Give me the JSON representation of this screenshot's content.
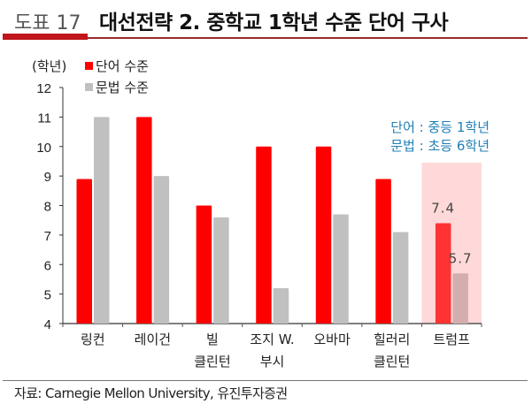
{
  "header": {
    "figure_number": "도표 17",
    "title": "대선전략 2. 중학교 1학년 수준 단어 구사"
  },
  "chart_data": {
    "type": "bar",
    "ylabel": "(학년)",
    "ylim": [
      4,
      12
    ],
    "yticks": [
      4,
      5,
      6,
      7,
      8,
      9,
      10,
      11,
      12
    ],
    "categories": [
      [
        "링컨"
      ],
      [
        "레이건"
      ],
      [
        "빌",
        "클린턴"
      ],
      [
        "조지 W.",
        "부시"
      ],
      [
        "오바마"
      ],
      [
        "힐러리",
        "클린턴"
      ],
      [
        "트럼프"
      ]
    ],
    "series": [
      {
        "name": "단어 수준",
        "color": "#ff0000",
        "values": [
          8.9,
          11.0,
          8.0,
          10.0,
          10.0,
          8.9,
          7.4
        ]
      },
      {
        "name": "문법 수준",
        "color": "#c0c0c0",
        "values": [
          11.0,
          9.0,
          7.6,
          5.2,
          7.7,
          7.1,
          5.7
        ]
      }
    ],
    "highlight": {
      "category": "트럼프",
      "color": "#ffd9d9",
      "bar_colors": [
        "#ff3333",
        "#d4aeae"
      ]
    },
    "data_labels": [
      {
        "category": "트럼프",
        "series": "단어 수준",
        "text": "7.4"
      },
      {
        "category": "트럼프",
        "series": "문법 수준",
        "text": "5.7"
      }
    ],
    "annotation": [
      "단어 : 중등 1학년",
      "문법 : 초등 6학년"
    ],
    "annotation_color": "#1f7fb5",
    "legend": "top-left",
    "grid": false
  },
  "source": "자료: Carnegie Mellon University, 유진투자증권"
}
